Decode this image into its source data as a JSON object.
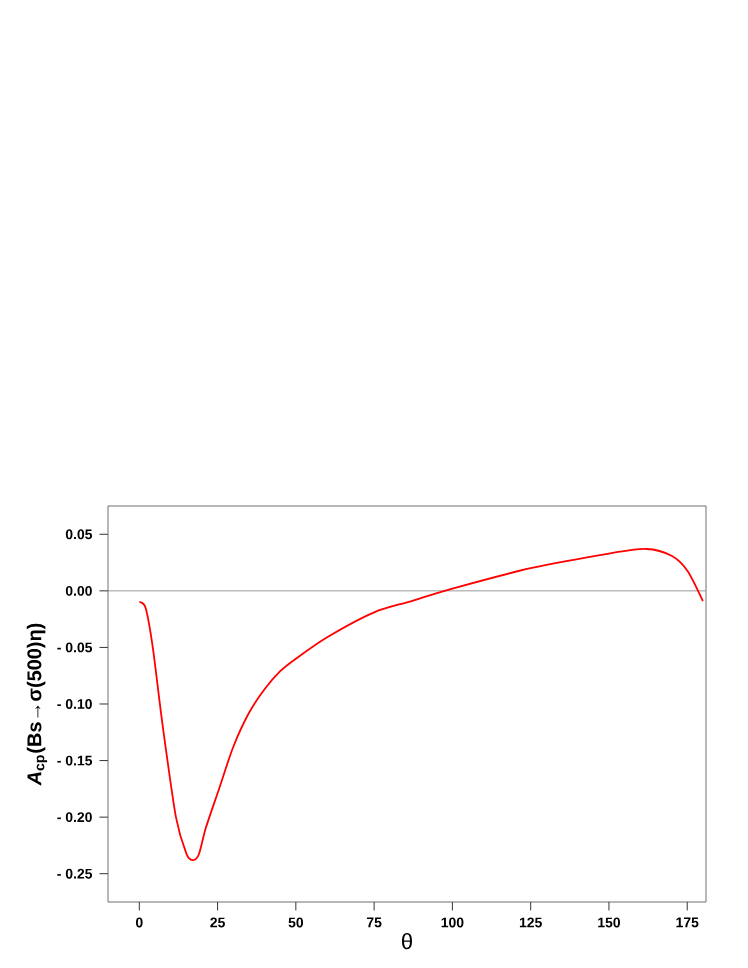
{
  "chart_data": {
    "type": "line",
    "xlabel": "θ",
    "ylabel": "*A*$_{cp}$(Bs→σ(500)η)",
    "x": [
      0,
      2,
      4.3,
      7.5,
      11.7,
      15,
      17,
      19,
      21.3,
      25.6,
      30,
      35,
      40,
      45,
      50,
      60,
      75,
      87,
      100,
      125,
      150,
      162,
      170,
      175,
      180
    ],
    "series": [
      {
        "color": "#ff0000",
        "values": [
          -0.01,
          -0.015,
          -0.05,
          -0.12,
          -0.2,
          -0.232,
          -0.238,
          -0.233,
          -0.209,
          -0.174,
          -0.138,
          -0.108,
          -0.087,
          -0.071,
          -0.06,
          -0.041,
          -0.019,
          -0.009,
          0.002,
          0.02,
          0.033,
          0.037,
          0.031,
          0.018,
          -0.009
        ]
      }
    ],
    "xlim": [
      -10,
      181
    ],
    "ylim": [
      -0.275,
      0.075
    ],
    "xticks": [
      0,
      25,
      50,
      75,
      100,
      125,
      150,
      175
    ],
    "yticks": [
      {
        "value": 0.05,
        "label": "0.05"
      },
      {
        "value": 0,
        "label": "0.00"
      },
      {
        "value": -0.05,
        "label": "- 0.05"
      },
      {
        "value": -0.1,
        "label": "- 0.10"
      },
      {
        "value": -0.15,
        "label": "- 0.15"
      },
      {
        "value": -0.2,
        "label": "- 0.20"
      },
      {
        "value": -0.25,
        "label": "- 0.25"
      }
    ],
    "ref_lines": [
      {
        "axis": "y",
        "value": 0,
        "color": "#808080"
      }
    ],
    "line_style": "solid",
    "marker": "none"
  }
}
